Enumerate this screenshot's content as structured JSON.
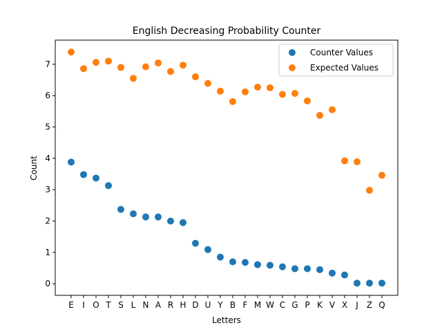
{
  "chart_data": {
    "type": "scatter",
    "title": "English Decreasing Probability Counter",
    "xlabel": "Letters",
    "ylabel": "Count",
    "categories": [
      "E",
      "I",
      "O",
      "T",
      "S",
      "L",
      "N",
      "A",
      "R",
      "H",
      "D",
      "U",
      "Y",
      "B",
      "F",
      "M",
      "W",
      "C",
      "G",
      "P",
      "K",
      "V",
      "X",
      "J",
      "Z",
      "Q"
    ],
    "ylim": [
      -0.37,
      7.77
    ],
    "yticks": [
      0,
      1,
      2,
      3,
      4,
      5,
      6,
      7
    ],
    "grid": false,
    "legend_position": "top-right",
    "series": [
      {
        "name": "Counter Values",
        "color": "#1f77b4",
        "values": [
          3.88,
          3.48,
          3.37,
          3.13,
          2.37,
          2.23,
          2.13,
          2.13,
          2.0,
          1.95,
          1.29,
          1.09,
          0.85,
          0.7,
          0.68,
          0.61,
          0.59,
          0.54,
          0.48,
          0.48,
          0.45,
          0.34,
          0.28,
          0.02,
          0.02,
          0.02
        ]
      },
      {
        "name": "Expected Values",
        "color": "#ff7f0e",
        "values": [
          7.39,
          6.86,
          7.06,
          7.1,
          6.9,
          6.55,
          6.92,
          7.04,
          6.77,
          6.97,
          6.6,
          6.39,
          6.14,
          5.81,
          6.12,
          6.27,
          6.25,
          6.04,
          6.07,
          5.83,
          5.37,
          5.55,
          3.92,
          3.89,
          2.98,
          3.46
        ]
      }
    ]
  }
}
